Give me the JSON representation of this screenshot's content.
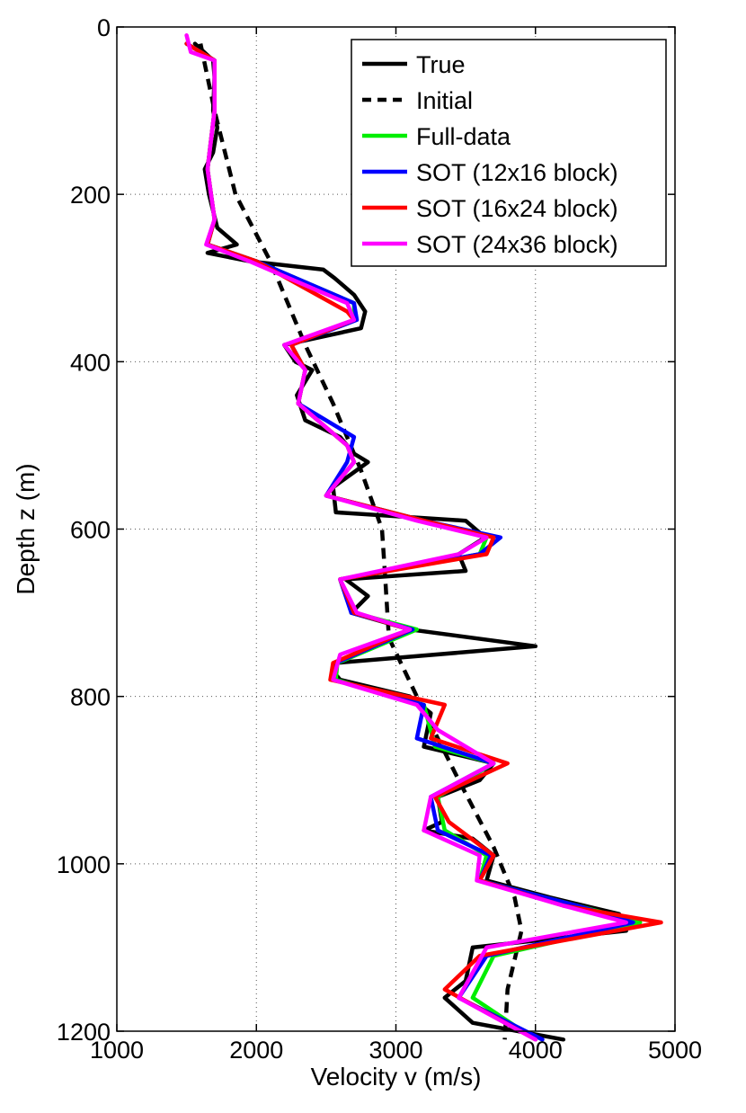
{
  "chart_data": {
    "type": "line",
    "title": "",
    "xlabel": "Velocity v (m/s)",
    "ylabel": "Depth z (m)",
    "xlim": [
      1000,
      5000
    ],
    "ylim": [
      0,
      1200
    ],
    "y_inverted": true,
    "x_ticks": [
      1000,
      2000,
      3000,
      4000,
      5000
    ],
    "y_ticks": [
      0,
      200,
      400,
      600,
      800,
      1000,
      1200
    ],
    "grid": true,
    "legend_position": "top-right",
    "series": [
      {
        "name": "True",
        "color": "#000000",
        "dash": "solid",
        "points": [
          [
            1560,
            20
          ],
          [
            1690,
            40
          ],
          [
            1700,
            60
          ],
          [
            1690,
            100
          ],
          [
            1720,
            120
          ],
          [
            1690,
            150
          ],
          [
            1630,
            170
          ],
          [
            1660,
            200
          ],
          [
            1720,
            240
          ],
          [
            1860,
            260
          ],
          [
            1650,
            270
          ],
          [
            1950,
            280
          ],
          [
            2480,
            290
          ],
          [
            2560,
            300
          ],
          [
            2700,
            320
          ],
          [
            2780,
            340
          ],
          [
            2750,
            360
          ],
          [
            2200,
            380
          ],
          [
            2280,
            400
          ],
          [
            2400,
            410
          ],
          [
            2290,
            440
          ],
          [
            2350,
            470
          ],
          [
            2600,
            490
          ],
          [
            2700,
            510
          ],
          [
            2800,
            520
          ],
          [
            2550,
            550
          ],
          [
            2570,
            580
          ],
          [
            3500,
            590
          ],
          [
            3640,
            610
          ],
          [
            3450,
            630
          ],
          [
            3500,
            650
          ],
          [
            2640,
            660
          ],
          [
            2800,
            680
          ],
          [
            2680,
            700
          ],
          [
            3100,
            720
          ],
          [
            4000,
            740
          ],
          [
            2570,
            760
          ],
          [
            2550,
            770
          ],
          [
            2600,
            780
          ],
          [
            3100,
            800
          ],
          [
            3250,
            820
          ],
          [
            3200,
            860
          ],
          [
            3700,
            880
          ],
          [
            3600,
            900
          ],
          [
            3300,
            920
          ],
          [
            3330,
            950
          ],
          [
            3200,
            960
          ],
          [
            3550,
            970
          ],
          [
            3700,
            990
          ],
          [
            3650,
            1020
          ],
          [
            4100,
            1040
          ],
          [
            4600,
            1060
          ],
          [
            4650,
            1080
          ],
          [
            3550,
            1100
          ],
          [
            3500,
            1140
          ],
          [
            3350,
            1160
          ],
          [
            3550,
            1190
          ],
          [
            4200,
            1210
          ]
        ]
      },
      {
        "name": "Initial",
        "color": "#000000",
        "dash": "dashed",
        "points": [
          [
            1600,
            20
          ],
          [
            1700,
            100
          ],
          [
            1850,
            200
          ],
          [
            2100,
            280
          ],
          [
            2350,
            380
          ],
          [
            2550,
            450
          ],
          [
            2750,
            530
          ],
          [
            2900,
            600
          ],
          [
            2920,
            650
          ],
          [
            2950,
            730
          ],
          [
            3150,
            800
          ],
          [
            3450,
            900
          ],
          [
            3700,
            980
          ],
          [
            3850,
            1040
          ],
          [
            3900,
            1080
          ],
          [
            3800,
            1150
          ],
          [
            3780,
            1210
          ]
        ]
      },
      {
        "name": "Full-data",
        "color": "#00ee00",
        "dash": "solid",
        "points": [
          [
            1500,
            20
          ],
          [
            1700,
            40
          ],
          [
            1700,
            100
          ],
          [
            1650,
            170
          ],
          [
            1700,
            230
          ],
          [
            1650,
            260
          ],
          [
            2000,
            280
          ],
          [
            2700,
            330
          ],
          [
            2700,
            350
          ],
          [
            2250,
            380
          ],
          [
            2350,
            410
          ],
          [
            2300,
            450
          ],
          [
            2650,
            500
          ],
          [
            2700,
            520
          ],
          [
            2500,
            560
          ],
          [
            3200,
            590
          ],
          [
            3650,
            610
          ],
          [
            3600,
            630
          ],
          [
            2600,
            660
          ],
          [
            2700,
            700
          ],
          [
            3150,
            720
          ],
          [
            2580,
            760
          ],
          [
            2570,
            780
          ],
          [
            3200,
            810
          ],
          [
            3280,
            860
          ],
          [
            3700,
            880
          ],
          [
            3300,
            920
          ],
          [
            3350,
            960
          ],
          [
            3650,
            990
          ],
          [
            3600,
            1020
          ],
          [
            4300,
            1050
          ],
          [
            4750,
            1070
          ],
          [
            3700,
            1110
          ],
          [
            3550,
            1160
          ],
          [
            4000,
            1210
          ]
        ]
      },
      {
        "name": "SOT (12x16 block)",
        "color": "#0000ff",
        "dash": "solid",
        "points": [
          [
            1500,
            20
          ],
          [
            1700,
            40
          ],
          [
            1700,
            100
          ],
          [
            1650,
            170
          ],
          [
            1700,
            230
          ],
          [
            1650,
            260
          ],
          [
            2000,
            280
          ],
          [
            2700,
            330
          ],
          [
            2720,
            350
          ],
          [
            2250,
            380
          ],
          [
            2350,
            410
          ],
          [
            2300,
            450
          ],
          [
            2700,
            490
          ],
          [
            2650,
            520
          ],
          [
            2500,
            560
          ],
          [
            3200,
            590
          ],
          [
            3750,
            610
          ],
          [
            3600,
            630
          ],
          [
            2600,
            660
          ],
          [
            2680,
            700
          ],
          [
            3120,
            720
          ],
          [
            2570,
            760
          ],
          [
            2550,
            780
          ],
          [
            3200,
            810
          ],
          [
            3150,
            850
          ],
          [
            3700,
            880
          ],
          [
            3250,
            920
          ],
          [
            3300,
            960
          ],
          [
            3680,
            990
          ],
          [
            3600,
            1020
          ],
          [
            4300,
            1050
          ],
          [
            4700,
            1070
          ],
          [
            3650,
            1110
          ],
          [
            3450,
            1160
          ],
          [
            4050,
            1210
          ]
        ]
      },
      {
        "name": "SOT (16x24 block)",
        "color": "#ff0000",
        "dash": "solid",
        "points": [
          [
            1500,
            20
          ],
          [
            1700,
            40
          ],
          [
            1700,
            100
          ],
          [
            1650,
            170
          ],
          [
            1700,
            230
          ],
          [
            1650,
            260
          ],
          [
            2000,
            280
          ],
          [
            2650,
            340
          ],
          [
            2700,
            350
          ],
          [
            2250,
            380
          ],
          [
            2350,
            410
          ],
          [
            2300,
            450
          ],
          [
            2650,
            500
          ],
          [
            2700,
            520
          ],
          [
            2500,
            560
          ],
          [
            3200,
            590
          ],
          [
            3700,
            610
          ],
          [
            3650,
            630
          ],
          [
            2600,
            660
          ],
          [
            2700,
            700
          ],
          [
            3100,
            720
          ],
          [
            2550,
            760
          ],
          [
            2530,
            780
          ],
          [
            3350,
            810
          ],
          [
            3250,
            850
          ],
          [
            3800,
            880
          ],
          [
            3280,
            920
          ],
          [
            3380,
            950
          ],
          [
            3700,
            990
          ],
          [
            3600,
            1020
          ],
          [
            4200,
            1050
          ],
          [
            4900,
            1070
          ],
          [
            3600,
            1110
          ],
          [
            3350,
            1150
          ],
          [
            4000,
            1210
          ]
        ]
      },
      {
        "name": "SOT (24x36 block)",
        "color": "#ff00ff",
        "dash": "solid",
        "points": [
          [
            1500,
            10
          ],
          [
            1530,
            30
          ],
          [
            1700,
            40
          ],
          [
            1700,
            100
          ],
          [
            1650,
            170
          ],
          [
            1700,
            230
          ],
          [
            1640,
            260
          ],
          [
            1950,
            280
          ],
          [
            2650,
            330
          ],
          [
            2700,
            350
          ],
          [
            2200,
            380
          ],
          [
            2350,
            410
          ],
          [
            2300,
            450
          ],
          [
            2650,
            500
          ],
          [
            2700,
            520
          ],
          [
            2500,
            560
          ],
          [
            3150,
            590
          ],
          [
            3650,
            610
          ],
          [
            3450,
            630
          ],
          [
            2600,
            660
          ],
          [
            2720,
            700
          ],
          [
            3100,
            720
          ],
          [
            2600,
            750
          ],
          [
            2550,
            780
          ],
          [
            3150,
            810
          ],
          [
            3300,
            840
          ],
          [
            3700,
            880
          ],
          [
            3250,
            920
          ],
          [
            3200,
            960
          ],
          [
            3600,
            990
          ],
          [
            3580,
            1020
          ],
          [
            4200,
            1050
          ],
          [
            4650,
            1070
          ],
          [
            3650,
            1100
          ],
          [
            3450,
            1160
          ],
          [
            4000,
            1210
          ]
        ]
      }
    ]
  }
}
